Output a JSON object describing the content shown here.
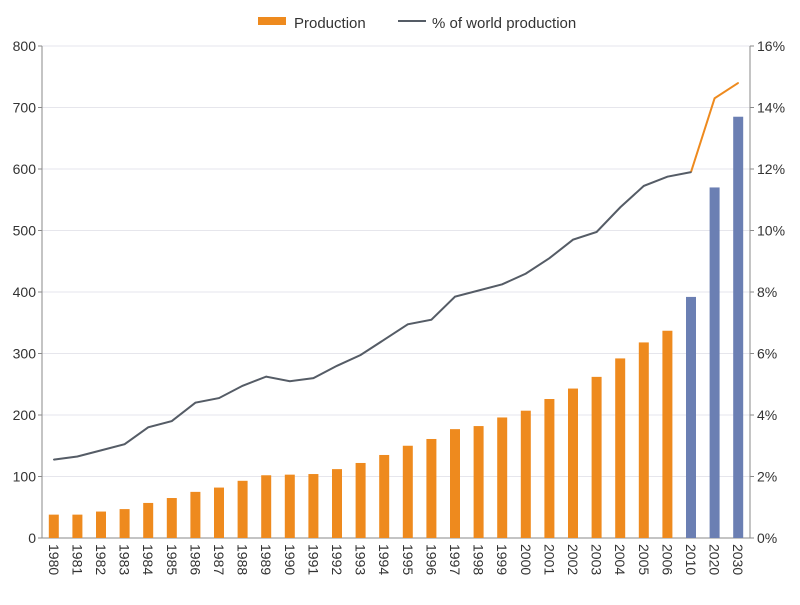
{
  "chart_data": {
    "type": "bar",
    "categories": [
      "1980",
      "1981",
      "1982",
      "1983",
      "1984",
      "1985",
      "1986",
      "1987",
      "1988",
      "1989",
      "1990",
      "1991",
      "1992",
      "1993",
      "1994",
      "1995",
      "1996",
      "1997",
      "1998",
      "1999",
      "2000",
      "2001",
      "2002",
      "2003",
      "2004",
      "2005",
      "2006",
      "2010",
      "2020",
      "2030"
    ],
    "series": [
      {
        "name": "Production",
        "type": "bar",
        "axis": "left",
        "values": [
          38,
          38,
          43,
          47,
          57,
          65,
          75,
          82,
          93,
          102,
          103,
          104,
          112,
          122,
          135,
          150,
          161,
          177,
          182,
          196,
          207,
          226,
          243,
          262,
          292,
          318,
          337,
          392,
          570,
          685
        ],
        "color": "#ee8a1e",
        "projection_color": "#6b7fb3",
        "projection_categories": [
          "2010",
          "2020",
          "2030"
        ]
      },
      {
        "name": "% of world production",
        "type": "line",
        "axis": "right",
        "values": [
          2.55,
          2.65,
          2.85,
          3.05,
          3.6,
          3.8,
          4.4,
          4.55,
          4.95,
          5.25,
          5.1,
          5.2,
          5.6,
          5.95,
          6.45,
          6.95,
          7.1,
          7.85,
          8.05,
          8.25,
          8.6,
          9.1,
          9.7,
          9.95,
          10.75,
          11.45,
          11.75,
          11.9,
          14.3,
          14.8
        ],
        "color": "#555c66",
        "projection_color": "#ee8a1e"
      }
    ],
    "y_left": {
      "range": [
        0,
        800
      ],
      "ticks": [
        "0",
        "100",
        "200",
        "300",
        "400",
        "500",
        "600",
        "700",
        "800"
      ]
    },
    "y_right": {
      "range": [
        0,
        16
      ],
      "ticks": [
        "0%",
        "2%",
        "4%",
        "6%",
        "8%",
        "10%",
        "12%",
        "14%",
        "16%"
      ]
    },
    "grid": true,
    "legend": "top-center"
  },
  "legend": {
    "production_label": "Production",
    "share_label": "% of world production"
  }
}
